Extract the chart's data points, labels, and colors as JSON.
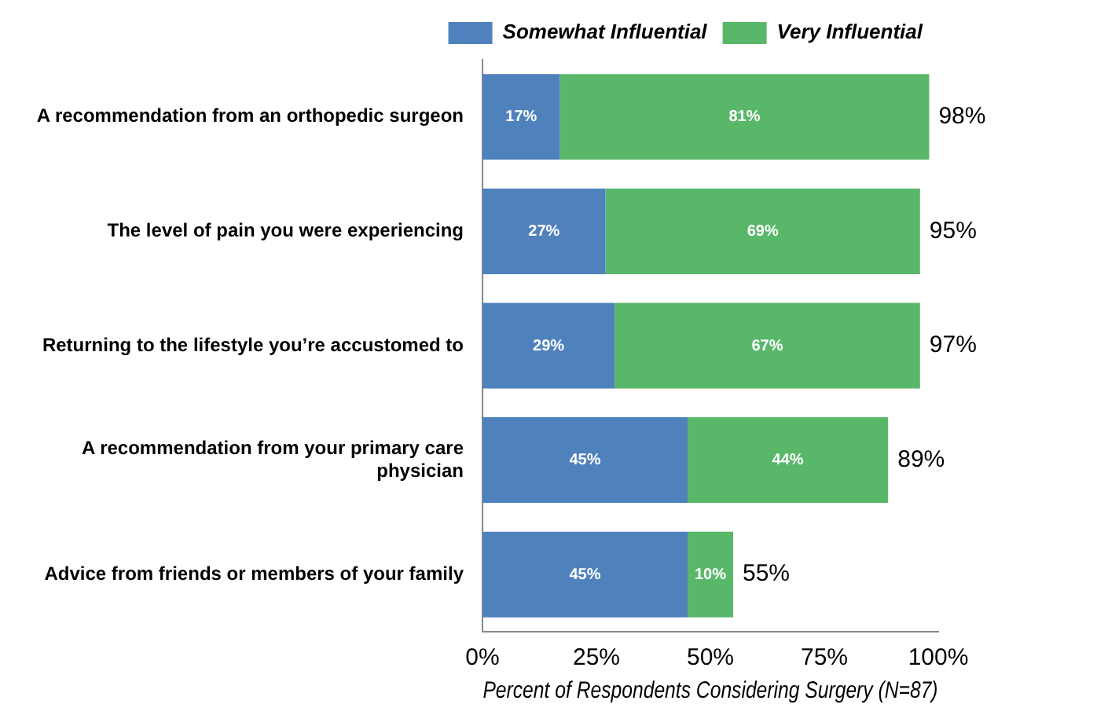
{
  "chart_data": {
    "type": "bar",
    "orientation": "horizontal",
    "stacked": true,
    "categories": [
      "A recommendation from an orthopedic surgeon",
      "The level of pain you were experiencing",
      "Returning to the lifestyle you’re accustomed to",
      "A recommendation from your primary care physician",
      "Advice from friends or members of your family"
    ],
    "series": [
      {
        "name": "Somewhat Influential",
        "color": "#4f81bd",
        "values": [
          17,
          27,
          29,
          45,
          45
        ],
        "value_labels": [
          "17%",
          "27%",
          "29%",
          "45%",
          "45%"
        ]
      },
      {
        "name": "Very Influential",
        "color": "#59b76a",
        "values": [
          81,
          69,
          67,
          44,
          10
        ],
        "value_labels": [
          "81%",
          "69%",
          "67%",
          "44%",
          "10%"
        ]
      }
    ],
    "totals": [
      "98%",
      "95%",
      "97%",
      "89%",
      "55%"
    ],
    "xlim": [
      0,
      100
    ],
    "xticks": [
      {
        "value": 0,
        "label": "0%"
      },
      {
        "value": 25,
        "label": "25%"
      },
      {
        "value": 50,
        "label": "50%"
      },
      {
        "value": 75,
        "label": "75%"
      },
      {
        "value": 100,
        "label": "100%"
      }
    ],
    "xlabel": "Percent of Respondents Considering Surgery (N=87)",
    "grid": false,
    "legend": "top"
  }
}
